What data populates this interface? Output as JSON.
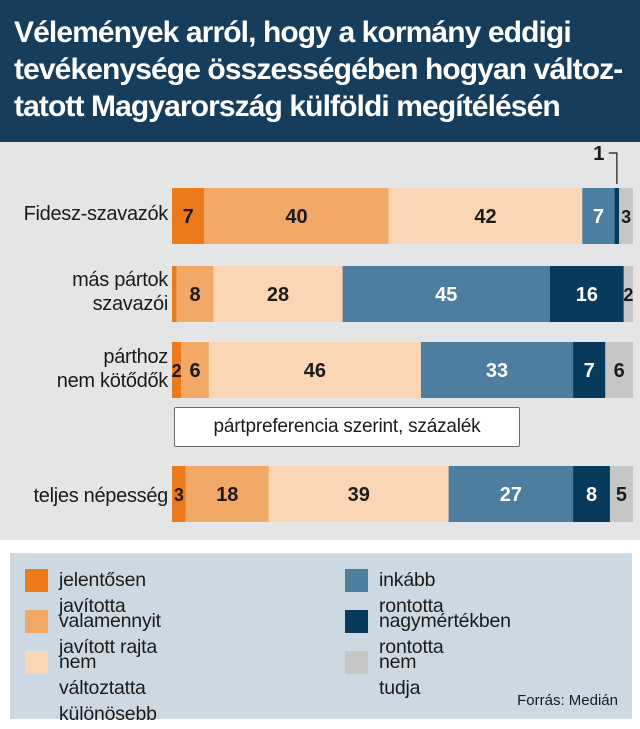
{
  "title": "Vélemények arról, hogy a kormány eddigi tevékenysége összességében hogyan változ-tatott Magyarország külföldi megítélésén",
  "note": "pártpreferencia szerint, százalék",
  "source": "Forrás: Medián",
  "colors": {
    "header_bg": "#163d5c",
    "plot_bg": "#e4e5e6",
    "legend_bg": "#ccd9e3",
    "series": [
      "#ec7a1a",
      "#f2a866",
      "#fad6b4",
      "#4d7e9f",
      "#073a5b",
      "#c5c6c6"
    ]
  },
  "chart_data": {
    "type": "bar",
    "orientation": "horizontal",
    "stacked": true,
    "categories": [
      "Fidesz-szavazók",
      "más pártok szavazói",
      "párthoz nem kötődők",
      "teljes népesség"
    ],
    "series": [
      {
        "name": "jelentősen javította",
        "values": [
          7,
          1,
          2,
          3
        ]
      },
      {
        "name": "valamennyit javított rajta",
        "values": [
          40,
          8,
          6,
          18
        ]
      },
      {
        "name": "nem változtatta különösebb mértékben",
        "values": [
          42,
          28,
          46,
          39
        ]
      },
      {
        "name": "inkább rontotta",
        "values": [
          7,
          45,
          33,
          27
        ]
      },
      {
        "name": "nagymértékben rontotta",
        "values": [
          1,
          16,
          7,
          8
        ]
      },
      {
        "name": "nem tudja",
        "values": [
          3,
          2,
          6,
          5
        ]
      }
    ],
    "unit": "százalék",
    "grid": false,
    "legend_position": "bottom"
  },
  "legend": [
    {
      "label": "jelentősen javította"
    },
    {
      "label": "valamennyit javított rajta"
    },
    {
      "label": "nem változtatta\nkülönösebb mértékben"
    },
    {
      "label": "inkább rontotta"
    },
    {
      "label": "nagymértékben rontotta"
    },
    {
      "label": "nem tudja"
    }
  ],
  "row_labels": [
    "Fidesz-szavazók",
    "más pártok\nszavazói",
    "párthoz\nnem kötődők",
    "teljes népesség"
  ]
}
